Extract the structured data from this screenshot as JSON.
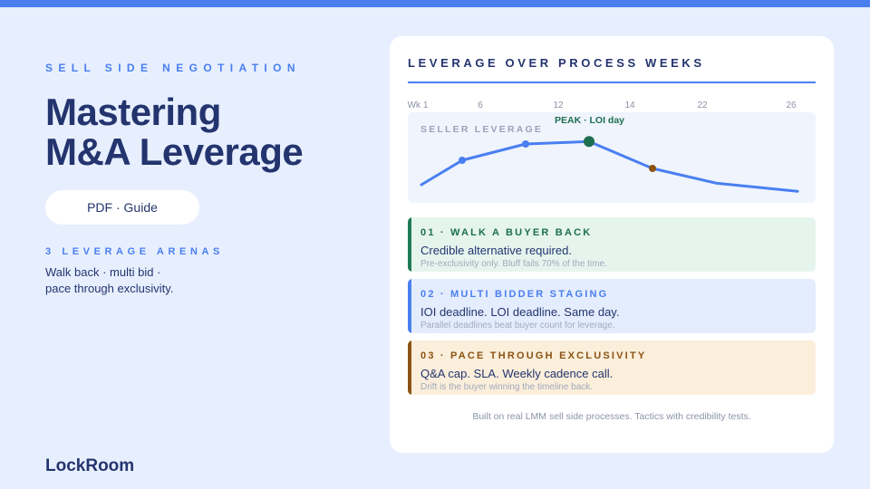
{
  "header": {
    "eyebrow": "SELL SIDE NEGOTIATION",
    "title_line1": "Mastering",
    "title_line2": "M&A Leverage",
    "format_pill": "PDF · Guide"
  },
  "arenas": {
    "label": "3 LEVERAGE ARENAS",
    "line1": "Walk back · multi bid ·",
    "line2": "pace through exclusivity."
  },
  "brand": "LockRoom",
  "colors": {
    "accent": "#4a7ff0",
    "navy": "#24346e",
    "green": "#1e6e50",
    "brown": "#8b5313",
    "background": "#e7efff"
  },
  "chart_data": {
    "type": "line",
    "title": "LEVERAGE OVER PROCESS WEEKS",
    "ylabel": "SELLER LEVERAGE",
    "x_ticks": [
      "Wk 1",
      "6",
      "12",
      "14",
      "22",
      "26"
    ],
    "annotation": "PEAK · LOI day",
    "series": [
      {
        "values": [
          {
            "x": "Wk 1",
            "y": 20
          },
          {
            "x": "6",
            "y": 50
          },
          {
            "x": "12",
            "y": 70
          },
          {
            "x": "14",
            "y": 73
          },
          {
            "x": "14-22",
            "y": 40
          },
          {
            "x": "22",
            "y": 22
          },
          {
            "x": "26",
            "y": 12
          }
        ]
      }
    ],
    "ylim": [
      0,
      100
    ],
    "grid": false
  },
  "tactics": [
    {
      "heading": "01 · WALK A BUYER BACK",
      "main": "Credible alternative required.",
      "sub": "Pre-exclusivity only. Bluff fails 70% of the time."
    },
    {
      "heading": "02 · MULTI BIDDER STAGING",
      "main": "IOI deadline. LOI deadline. Same day.",
      "sub": "Parallel deadlines beat buyer count for leverage."
    },
    {
      "heading": "03 · PACE THROUGH EXCLUSIVITY",
      "main": "Q&A cap. SLA. Weekly cadence call.",
      "sub": "Drift is the buyer winning the timeline back."
    }
  ],
  "footnote": "Built on real LMM sell side processes. Tactics with credibility tests."
}
